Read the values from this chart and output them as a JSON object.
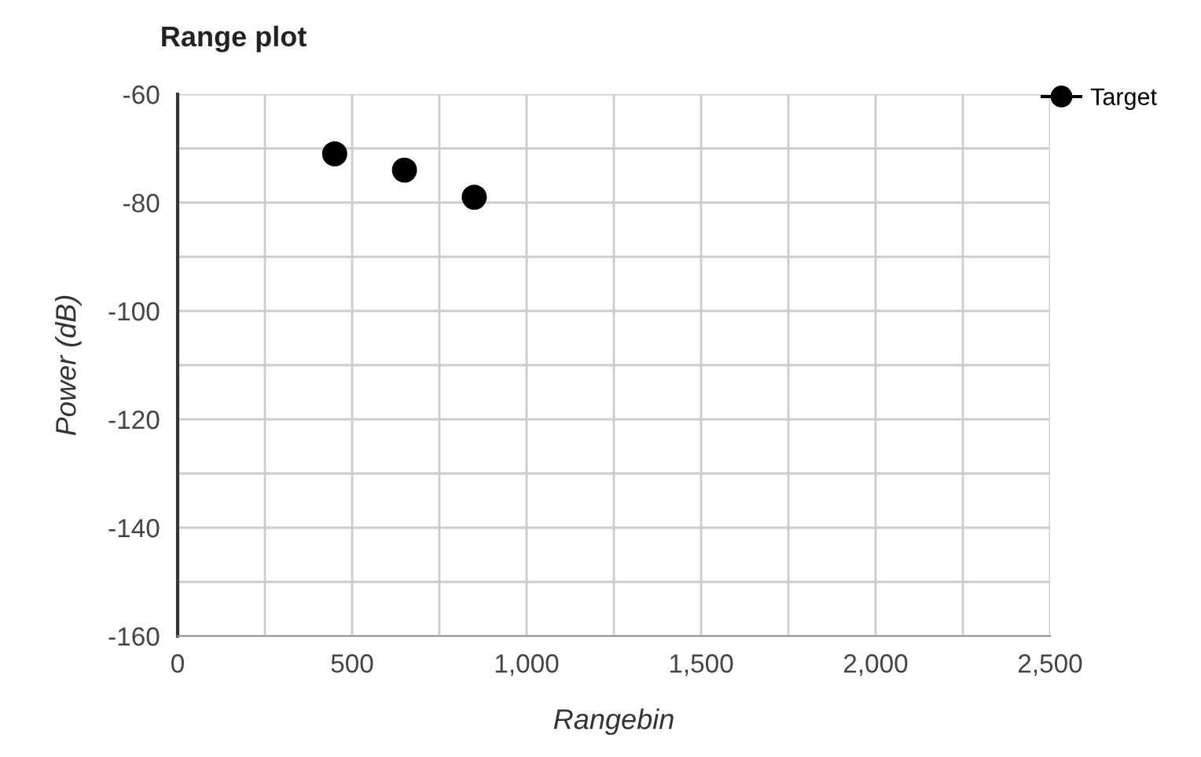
{
  "chart_data": {
    "type": "scatter",
    "title": "Range plot",
    "xlabel": "Rangebin",
    "ylabel": "Power (dB)",
    "x": [
      450,
      650,
      850
    ],
    "series": [
      {
        "name": "Target",
        "color": "#000000",
        "values": [
          -71,
          -74,
          -79
        ]
      }
    ],
    "xlim": [
      0,
      2500
    ],
    "xticks": [
      0,
      {
        "value": 250,
        "label": null
      },
      500,
      {
        "value": 750,
        "label": null
      },
      {
        "value": 1000,
        "label": "1,000"
      },
      {
        "value": 1250,
        "label": null
      },
      {
        "value": 1500,
        "label": "1,500"
      },
      {
        "value": 1750,
        "label": null
      },
      {
        "value": 2000,
        "label": "2,000"
      },
      {
        "value": 2250,
        "label": null
      },
      {
        "value": 2500,
        "label": "2,500"
      }
    ],
    "ylim": [
      -160,
      -60
    ],
    "yticks": [
      -160,
      {
        "value": -150,
        "label": null
      },
      -140,
      {
        "value": -130,
        "label": null
      },
      -120,
      {
        "value": -110,
        "label": null
      },
      -100,
      {
        "value": -90,
        "label": null
      },
      -80,
      {
        "value": -70,
        "label": null
      },
      -60
    ],
    "grid": true,
    "legend": "top right",
    "marker": "circle"
  }
}
